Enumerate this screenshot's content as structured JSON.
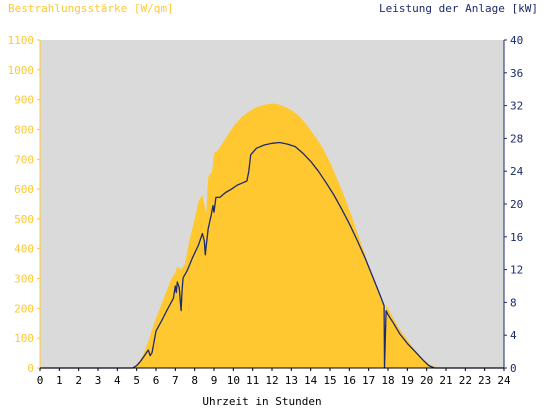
{
  "chart_data": {
    "type": "area",
    "left_axis_title": "Bestrahlungsstärke [W/qm]",
    "right_axis_title": "Leistung der Anlage [kW]",
    "xlabel": "Uhrzeit in Stunden",
    "xlim": [
      0,
      24
    ],
    "ylim_left": [
      0,
      1100
    ],
    "ylim_right": [
      0,
      40
    ],
    "x_ticks": [
      "0",
      "1",
      "2",
      "3",
      "4",
      "5",
      "6",
      "7",
      "8",
      "9",
      "10",
      "11",
      "12",
      "13",
      "14",
      "15",
      "16",
      "17",
      "18",
      "19",
      "20",
      "21",
      "22",
      "23",
      "24"
    ],
    "y_left_ticks": [
      "0",
      "100",
      "200",
      "300",
      "400",
      "500",
      "600",
      "700",
      "800",
      "900",
      "1000",
      "1100"
    ],
    "y_right_ticks": [
      "0",
      "4",
      "8",
      "12",
      "16",
      "20",
      "24",
      "28",
      "32",
      "36",
      "40"
    ],
    "grid": false,
    "colors": {
      "plot_background": "#dadada",
      "irradiance_fill": "#ffc830",
      "power_line": "#1c2a6e",
      "left_axis": "#ffc830",
      "right_axis": "#1c2a6e"
    },
    "series": [
      {
        "axis": "left",
        "style": "area",
        "x": [
          0,
          4.7,
          5.0,
          5.3,
          5.6,
          5.9,
          6.2,
          6.5,
          6.8,
          7.0,
          7.1,
          7.3,
          7.5,
          7.7,
          8.0,
          8.2,
          8.4,
          8.6,
          8.7,
          8.9,
          9.0,
          9.2,
          9.4,
          9.6,
          10.0,
          10.4,
          10.8,
          11.2,
          11.6,
          12.0,
          12.3,
          12.6,
          13.0,
          13.4,
          13.8,
          14.2,
          14.6,
          15.0,
          15.4,
          15.8,
          16.2,
          16.6,
          17.0,
          17.4,
          17.8,
          17.85,
          17.9,
          18.0,
          18.3,
          18.6,
          19.0,
          19.4,
          19.8,
          20.2,
          20.6,
          24
        ],
        "y": [
          0,
          0,
          10,
          40,
          90,
          150,
          200,
          250,
          300,
          320,
          340,
          330,
          350,
          420,
          500,
          560,
          580,
          520,
          640,
          660,
          720,
          730,
          750,
          770,
          810,
          840,
          860,
          875,
          883,
          887,
          885,
          878,
          865,
          845,
          815,
          780,
          740,
          690,
          630,
          565,
          495,
          420,
          345,
          270,
          205,
          30,
          210,
          200,
          165,
          130,
          95,
          60,
          30,
          10,
          0,
          0
        ]
      },
      {
        "axis": "right",
        "style": "line",
        "x": [
          0,
          4.8,
          5.0,
          5.2,
          5.4,
          5.6,
          5.7,
          5.8,
          6.0,
          6.3,
          6.6,
          6.9,
          7.0,
          7.05,
          7.1,
          7.2,
          7.3,
          7.35,
          7.4,
          7.6,
          7.9,
          8.2,
          8.4,
          8.5,
          8.55,
          8.6,
          8.7,
          8.85,
          8.95,
          9.0,
          9.1,
          9.3,
          9.6,
          9.9,
          10.2,
          10.5,
          10.7,
          10.8,
          10.9,
          11.2,
          11.6,
          12.0,
          12.4,
          12.8,
          13.2,
          13.6,
          14.0,
          14.4,
          14.8,
          15.2,
          15.6,
          16.0,
          16.4,
          16.8,
          17.2,
          17.6,
          17.8,
          17.82,
          17.9,
          18.0,
          18.3,
          18.6,
          19.0,
          19.4,
          19.8,
          20.1,
          20.4,
          24
        ],
        "y": [
          0,
          0,
          0.3,
          0.8,
          1.5,
          2.2,
          1.5,
          1.9,
          4.5,
          5.8,
          7.2,
          8.5,
          10.0,
          9.2,
          10.5,
          9.8,
          7.0,
          9.5,
          11.0,
          11.8,
          13.5,
          15.0,
          16.4,
          15.5,
          13.8,
          15.0,
          17.0,
          18.6,
          19.8,
          19.0,
          20.8,
          20.8,
          21.4,
          21.8,
          22.3,
          22.6,
          22.8,
          24.0,
          26.0,
          26.8,
          27.2,
          27.4,
          27.5,
          27.3,
          27.0,
          26.2,
          25.2,
          24.0,
          22.6,
          21.1,
          19.4,
          17.6,
          15.6,
          13.5,
          11.2,
          8.8,
          7.6,
          0,
          7.0,
          6.5,
          5.4,
          4.2,
          3.0,
          2.0,
          1.0,
          0.3,
          0,
          0
        ]
      }
    ]
  }
}
